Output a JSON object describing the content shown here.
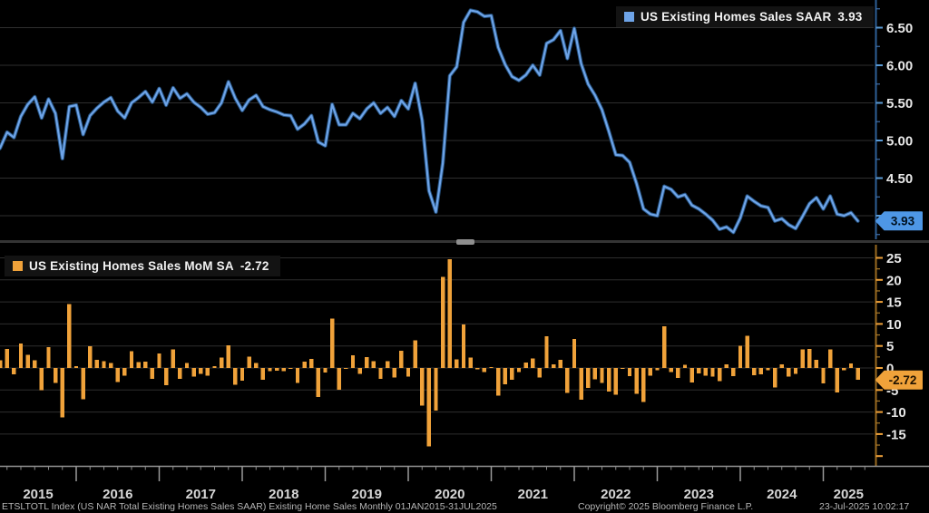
{
  "chart_data": [
    {
      "type": "line",
      "legend_label": "US Existing Homes Sales SAAR",
      "last_value": 3.93,
      "last_value_label": "3.93",
      "color": "#6ea4e8",
      "x_start": "2015-01",
      "x_end": "2025-06",
      "frequency": "monthly",
      "ylim": [
        3.66,
        6.87
      ],
      "yticks": [
        4.0,
        4.5,
        5.0,
        5.5,
        6.0,
        6.5
      ],
      "ytick_labels": [
        "4.00",
        "4.50",
        "5.00",
        "5.50",
        "6.00",
        "6.50"
      ],
      "grid": true,
      "legend_position": "top-right",
      "values": [
        4.82,
        4.9,
        5.11,
        5.04,
        5.32,
        5.48,
        5.58,
        5.3,
        5.55,
        5.36,
        4.76,
        5.45,
        5.47,
        5.08,
        5.33,
        5.43,
        5.51,
        5.57,
        5.39,
        5.3,
        5.5,
        5.57,
        5.65,
        5.51,
        5.69,
        5.47,
        5.7,
        5.56,
        5.62,
        5.51,
        5.44,
        5.35,
        5.37,
        5.5,
        5.78,
        5.56,
        5.4,
        5.54,
        5.6,
        5.45,
        5.41,
        5.38,
        5.34,
        5.33,
        5.15,
        5.22,
        5.33,
        4.98,
        4.93,
        5.48,
        5.21,
        5.21,
        5.36,
        5.29,
        5.42,
        5.5,
        5.36,
        5.44,
        5.32,
        5.53,
        5.42,
        5.76,
        5.27,
        4.33,
        4.05,
        4.7,
        5.86,
        5.98,
        6.57,
        6.73,
        6.71,
        6.65,
        6.66,
        6.24,
        6.01,
        5.85,
        5.8,
        5.87,
        6.0,
        5.87,
        6.29,
        6.34,
        6.46,
        6.09,
        6.49,
        6.02,
        5.75,
        5.6,
        5.41,
        5.12,
        4.81,
        4.8,
        4.71,
        4.43,
        4.09,
        4.02,
        4.0,
        4.39,
        4.35,
        4.25,
        4.28,
        4.14,
        4.09,
        4.02,
        3.94,
        3.82,
        3.85,
        3.78,
        3.97,
        4.26,
        4.19,
        4.13,
        4.11,
        3.93,
        3.96,
        3.88,
        3.83,
        3.99,
        4.16,
        4.24,
        4.09,
        4.26,
        4.02,
        4.0,
        4.04,
        3.93
      ]
    },
    {
      "type": "bar",
      "legend_label": "US Existing Homes Sales MoM SA",
      "last_value": -2.72,
      "last_value_label": "-2.72",
      "color": "#f0a23a",
      "x_start": "2015-01",
      "x_end": "2025-06",
      "frequency": "monthly",
      "ylim": [
        -22,
        27
      ],
      "yticks": [
        -15,
        -10,
        -5,
        0,
        5,
        10,
        15,
        20,
        25
      ],
      "ytick_labels": [
        "-15",
        "-10",
        "-5",
        "0",
        "5",
        "10",
        "15",
        "20",
        "25"
      ],
      "grid": true,
      "legend_position": "top-left",
      "values": [
        -4.6,
        1.7,
        4.3,
        -1.4,
        5.6,
        3.0,
        1.8,
        -5.0,
        4.7,
        -3.4,
        -11.2,
        14.5,
        0.4,
        -7.1,
        4.9,
        1.9,
        1.5,
        1.1,
        -3.2,
        -1.7,
        3.8,
        1.3,
        1.4,
        -2.5,
        3.3,
        -3.9,
        4.2,
        -2.5,
        1.1,
        -2.0,
        -1.3,
        -1.7,
        0.4,
        2.4,
        5.1,
        -3.8,
        -2.9,
        2.6,
        1.1,
        -2.7,
        -0.7,
        -0.6,
        -0.7,
        -0.2,
        -3.4,
        1.4,
        2.1,
        -6.6,
        -1.0,
        11.2,
        -4.9,
        0.0,
        2.9,
        -1.3,
        2.5,
        1.5,
        -2.5,
        1.5,
        -2.2,
        3.9,
        -2.0,
        6.3,
        -8.5,
        -17.8,
        -9.7,
        20.7,
        24.7,
        2.0,
        9.9,
        2.4,
        -0.3,
        -0.9,
        0.2,
        -6.3,
        -3.7,
        -2.7,
        -0.9,
        1.2,
        2.2,
        -2.2,
        7.2,
        0.8,
        1.9,
        -5.7,
        6.6,
        -7.2,
        -4.5,
        -2.6,
        -3.4,
        -5.4,
        -6.1,
        -0.2,
        -1.9,
        -5.9,
        -7.7,
        -1.7,
        -0.5,
        9.5,
        -0.9,
        -2.3,
        0.7,
        -3.3,
        -1.2,
        -1.7,
        -2.0,
        -3.0,
        0.8,
        -1.8,
        5.0,
        7.3,
        -1.6,
        -1.4,
        -0.5,
        -4.4,
        0.8,
        -2.0,
        -1.3,
        4.2,
        4.3,
        1.9,
        -3.5,
        4.2,
        -5.6,
        -0.5,
        1.0,
        -2.72
      ]
    }
  ],
  "x_axis": {
    "years": [
      "2015",
      "2016",
      "2017",
      "2018",
      "2019",
      "2020",
      "2021",
      "2022",
      "2023",
      "2024",
      "2025"
    ]
  },
  "footer": {
    "left": "ETSLTOTL Index (US NAR Total Existing Homes Sales SAAR) Existing Home Sales  Monthly 01JAN2015-31JUL2025",
    "copyright": "Copyright© 2025 Bloomberg Finance L.P.",
    "timestamp": "23-Jul-2025 10:02:17"
  },
  "colors": {
    "background": "#000000",
    "grid": "#2e2e2e",
    "line_series": "#6ea4e8",
    "line_axis": "#2e5f96",
    "line_tick": "#5b9bd5",
    "line_badge": "#4e97e6",
    "bar_series": "#f0a23a",
    "bar_axis": "#9a6a20",
    "bar_tick": "#f0a23a",
    "bar_badge": "#f0a23a",
    "x_axis": "#949494",
    "axis_text": "#e8e8e8",
    "year_text": "#d6d6d6",
    "footer_text": "#b5b5b5"
  }
}
